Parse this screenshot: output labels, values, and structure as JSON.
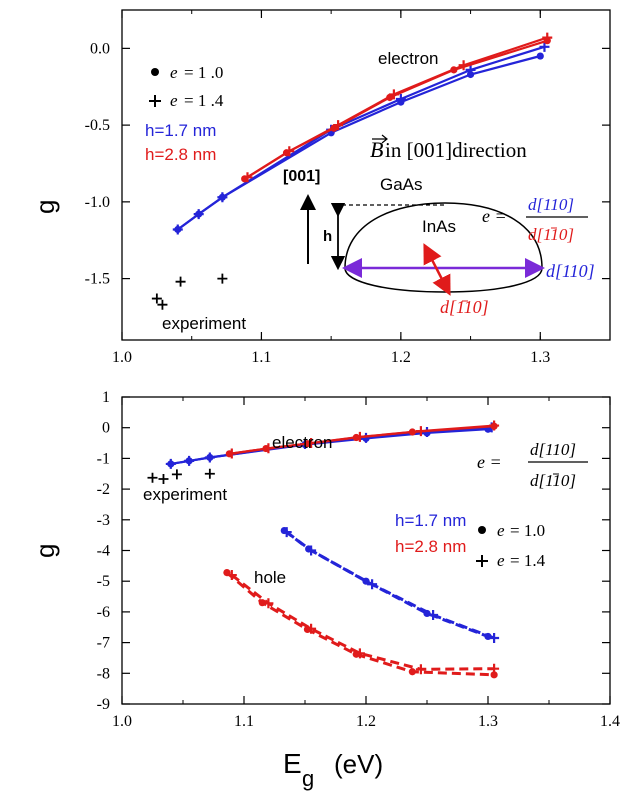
{
  "colors": {
    "h17": "#2424d8",
    "h28": "#e01b1b",
    "exp": "#000000"
  },
  "top": {
    "ylabel": "g",
    "legend": {
      "e1_prefix": "e",
      "e1_value": "= 1 .0",
      "e2_prefix": "e",
      "e2_value": "= 1 .4",
      "h17": "h=1.7 nm",
      "h28": "h=2.8 nm"
    },
    "annot": {
      "electron": "electron",
      "experiment": "experiment",
      "B_symbol": "B",
      "B_text": " in [001]direction",
      "dir001": "[001]",
      "gaas": "GaAs",
      "inas": "InAs",
      "h": "h",
      "e_eq": "e =",
      "frac_num": "d[110]",
      "frac_den": "d[110]",
      "d110": "d[110]",
      "d1m10": "d[110]"
    }
  },
  "bottom": {
    "ylabel": "g",
    "xlabel_main": "E",
    "xlabel_sub": "g",
    "xlabel_unit": "(eV)",
    "legend": {
      "e1_prefix": "e",
      "e1_value": "= 1.0",
      "e2_prefix": "e",
      "e2_value": "= 1.4",
      "h17": "h=1.7 nm",
      "h28": "h=2.8 nm"
    },
    "annot": {
      "electron": "electron",
      "hole": "hole",
      "experiment": "experiment",
      "e_eq": "e =",
      "frac_num": "d[110]",
      "frac_den": "d[110]"
    }
  },
  "chart_data": [
    {
      "type": "line",
      "panel": "top",
      "xlim": [
        1.0,
        1.35
      ],
      "ylim": [
        -1.9,
        0.25
      ],
      "xticks": [
        "1.0",
        "1.1",
        "1.2",
        "1.3"
      ],
      "xtick_values": [
        1.0,
        1.1,
        1.2,
        1.3
      ],
      "yticks": [
        "0.0",
        "-0.5",
        "-1.0",
        "-1.5"
      ],
      "ytick_values": [
        0.0,
        -0.5,
        -1.0,
        -1.5
      ],
      "series": [
        {
          "name": "h=1.7 nm",
          "marker": "dot",
          "color": "#2424d8",
          "x": [
            1.04,
            1.055,
            1.072,
            1.15,
            1.2,
            1.25,
            1.3
          ],
          "y": [
            -1.18,
            -1.08,
            -0.97,
            -0.55,
            -0.35,
            -0.17,
            -0.05
          ]
        },
        {
          "marker": "plus",
          "color": "#2424d8",
          "x": [
            1.04,
            1.055,
            1.072,
            1.15,
            1.2,
            1.25,
            1.303
          ],
          "y": [
            -1.18,
            -1.08,
            -0.97,
            -0.53,
            -0.33,
            -0.14,
            0.01
          ]
        },
        {
          "name": "h=2.8 nm",
          "marker": "dot",
          "color": "#e01b1b",
          "x": [
            1.088,
            1.118,
            1.152,
            1.192,
            1.238,
            1.305
          ],
          "y": [
            -0.85,
            -0.68,
            -0.52,
            -0.32,
            -0.14,
            0.05
          ]
        },
        {
          "marker": "plus",
          "color": "#e01b1b",
          "x": [
            1.09,
            1.12,
            1.155,
            1.195,
            1.245,
            1.305
          ],
          "y": [
            -0.84,
            -0.67,
            -0.5,
            -0.3,
            -0.11,
            0.07
          ]
        }
      ],
      "experiment": {
        "x": [
          1.025,
          1.029,
          1.042,
          1.072
        ],
        "y": [
          -1.63,
          -1.67,
          -1.52,
          -1.5
        ]
      }
    },
    {
      "type": "line",
      "panel": "bottom",
      "xlim": [
        1.0,
        1.4
      ],
      "ylim": [
        -9,
        1
      ],
      "xticks": [
        "1.0",
        "1.1",
        "1.2",
        "1.3",
        "1.4"
      ],
      "xtick_values": [
        1.0,
        1.1,
        1.2,
        1.3,
        1.4
      ],
      "yticks": [
        "1",
        "0",
        "-1",
        "-2",
        "-3",
        "-4",
        "-5",
        "-6",
        "-7",
        "-8",
        "-9"
      ],
      "ytick_values": [
        1,
        0,
        -1,
        -2,
        -3,
        -4,
        -5,
        -6,
        -7,
        -8,
        -9
      ],
      "series": [
        {
          "name": "electron h=1.7 nm",
          "marker": "dot",
          "color": "#2424d8",
          "x": [
            1.04,
            1.055,
            1.072,
            1.15,
            1.2,
            1.25,
            1.3
          ],
          "y": [
            -1.18,
            -1.08,
            -0.97,
            -0.55,
            -0.35,
            -0.17,
            -0.05
          ]
        },
        {
          "marker": "plus",
          "color": "#2424d8",
          "x": [
            1.04,
            1.055,
            1.072,
            1.15,
            1.2,
            1.25,
            1.303
          ],
          "y": [
            -1.18,
            -1.08,
            -0.97,
            -0.53,
            -0.33,
            -0.14,
            0.01
          ]
        },
        {
          "name": "electron h=2.8 nm",
          "marker": "dot",
          "color": "#e01b1b",
          "x": [
            1.088,
            1.118,
            1.152,
            1.192,
            1.238,
            1.305
          ],
          "y": [
            -0.85,
            -0.68,
            -0.52,
            -0.32,
            -0.14,
            0.05
          ]
        },
        {
          "marker": "plus",
          "color": "#e01b1b",
          "x": [
            1.09,
            1.12,
            1.155,
            1.195,
            1.245,
            1.305
          ],
          "y": [
            -0.84,
            -0.67,
            -0.5,
            -0.3,
            -0.11,
            0.07
          ]
        },
        {
          "name": "hole h=1.7 nm",
          "marker": "dot",
          "color": "#2424d8",
          "dashed": true,
          "x": [
            1.133,
            1.153,
            1.2,
            1.25,
            1.3
          ],
          "y": [
            -3.35,
            -3.95,
            -5.0,
            -6.05,
            -6.8
          ]
        },
        {
          "marker": "plus",
          "color": "#2424d8",
          "dashed": true,
          "x": [
            1.135,
            1.155,
            1.205,
            1.255,
            1.305
          ],
          "y": [
            -3.4,
            -4.0,
            -5.1,
            -6.1,
            -6.85
          ]
        },
        {
          "name": "hole h=2.8 nm",
          "marker": "dot",
          "color": "#e01b1b",
          "dashed": true,
          "x": [
            1.086,
            1.115,
            1.152,
            1.192,
            1.238,
            1.305
          ],
          "y": [
            -4.72,
            -5.7,
            -6.57,
            -7.38,
            -7.95,
            -8.05
          ]
        },
        {
          "marker": "plus",
          "color": "#e01b1b",
          "dashed": true,
          "x": [
            1.09,
            1.12,
            1.155,
            1.195,
            1.245,
            1.305
          ],
          "y": [
            -4.8,
            -5.72,
            -6.55,
            -7.35,
            -7.87,
            -7.85
          ]
        }
      ],
      "experiment": {
        "x": [
          1.025,
          1.034,
          1.045,
          1.072
        ],
        "y": [
          -1.63,
          -1.67,
          -1.52,
          -1.5
        ]
      }
    }
  ]
}
